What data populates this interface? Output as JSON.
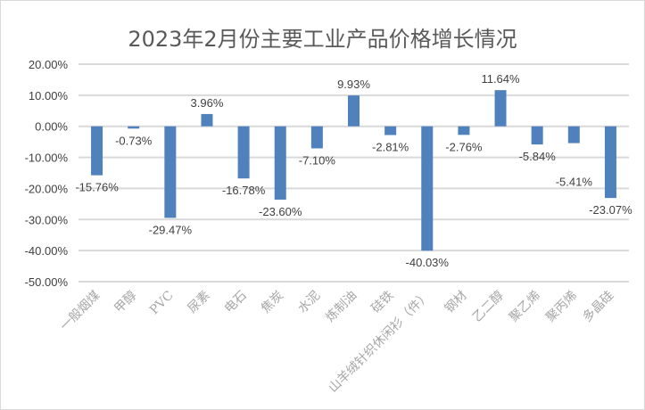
{
  "chart_data": {
    "type": "bar",
    "title": "2023年2月份主要工业产品价格增长情况",
    "categories": [
      "一般烟煤",
      "甲醇",
      "PVC",
      "尿素",
      "电石",
      "焦炭",
      "水泥",
      "炼制油",
      "硅铁",
      "山羊绒针织休闲衫（件）",
      "钢材",
      "乙二醇",
      "聚乙烯",
      "聚丙烯",
      "多晶硅"
    ],
    "values": [
      -15.76,
      -0.73,
      -29.47,
      3.96,
      -16.78,
      -23.6,
      -7.1,
      9.93,
      -2.81,
      -40.03,
      -2.76,
      11.64,
      -5.84,
      -5.41,
      -23.07
    ],
    "data_labels": [
      "-15.76%",
      "-0.73%",
      "-29.47%",
      "3.96%",
      "-16.78%",
      "-23.60%",
      "-7.10%",
      "9.93%",
      "-2.81%",
      "-40.03%",
      "-2.76%",
      "11.64%",
      "-5.84%",
      "-5.41%",
      "-23.07%"
    ],
    "ylim": [
      -50,
      20
    ],
    "yticks": [
      "20.00%",
      "10.00%",
      "0.00%",
      "-10.00%",
      "-20.00%",
      "-30.00%",
      "-40.00%",
      "-50.00%"
    ],
    "xlabel": "",
    "ylabel": "",
    "grid": true,
    "bar_color": "#4f81bd"
  }
}
